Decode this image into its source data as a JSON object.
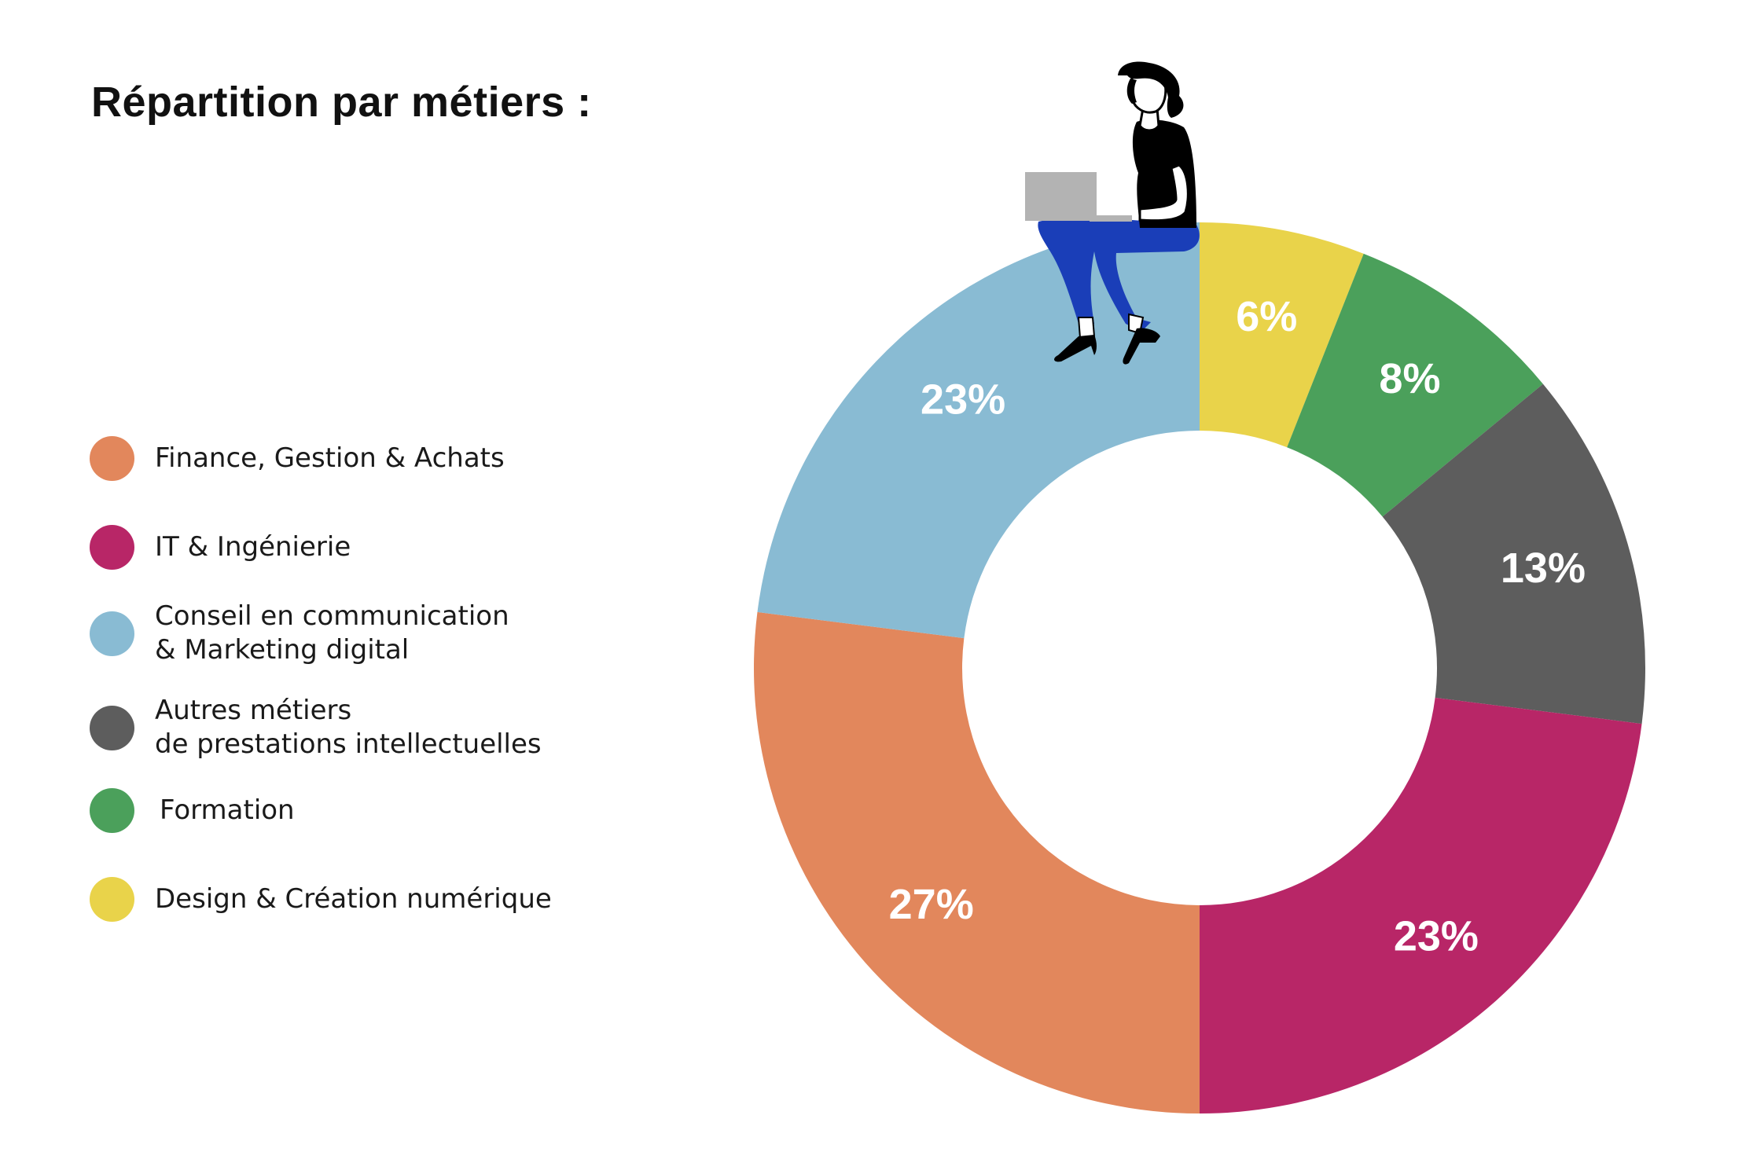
{
  "chart_data": {
    "type": "pie",
    "title": "Répartition par métiers :",
    "donut": true,
    "slices": [
      {
        "label": "Design & Création numérique",
        "value": 6,
        "display": "6%",
        "color": "#E9D34A"
      },
      {
        "label": "Formation",
        "value": 8,
        "display": "8%",
        "color": "#4BA05B"
      },
      {
        "label": "Autres métiers\nde prestations intellectuelles",
        "value": 13,
        "display": "13%",
        "color": "#5D5D5D"
      },
      {
        "label": "IT & Ingénierie",
        "value": 23,
        "display": "23%",
        "color": "#B82667"
      },
      {
        "label": "Finance, Gestion & Achats",
        "value": 27,
        "display": "27%",
        "color": "#E2875C"
      },
      {
        "label": "Conseil en communication\n& Marketing digital",
        "value": 23,
        "display": "23%",
        "color": "#89BBD3"
      }
    ],
    "legend": [
      {
        "label": "Finance, Gestion & Achats",
        "color": "#E2875C"
      },
      {
        "label": "IT & Ingénierie",
        "color": "#B82667"
      },
      {
        "label": "Conseil en communication\n& Marketing digital",
        "color": "#89BBD3"
      },
      {
        "label": "Autres métiers\nde prestations intellectuelles",
        "color": "#5D5D5D"
      },
      {
        "label": "Formation",
        "color": "#4BA05B"
      },
      {
        "label": "Design & Création numérique",
        "color": "#E9D34A"
      }
    ],
    "legend_position": "left"
  },
  "illustration": {
    "icon": "woman-with-laptop-icon",
    "colors": {
      "hair_top": "#000000",
      "trousers": "#1A3EB8",
      "laptop": "#B3B3B3"
    }
  }
}
